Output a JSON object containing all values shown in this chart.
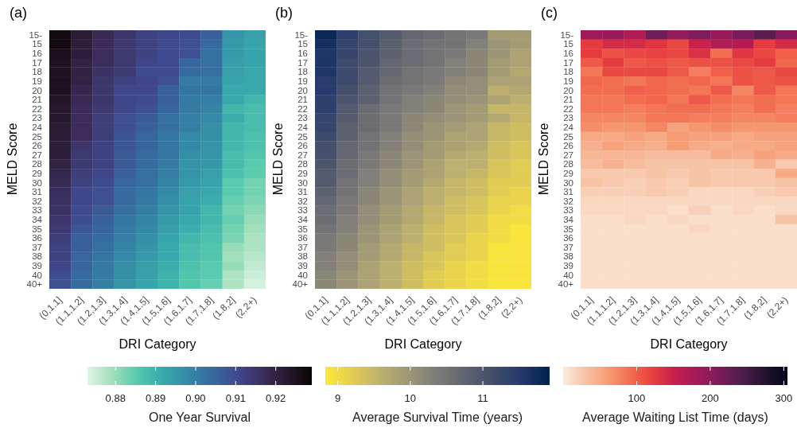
{
  "chart_data": [
    {
      "type": "heatmap",
      "title": "(a)",
      "xlabel": "DRI Category",
      "ylabel": "MELD Score",
      "clabel": "One Year Survival",
      "categories": [
        "(0,1.1]",
        "(1.1,1.2]",
        "(1.2,1.3]",
        "(1.3,1.4]",
        "(1.4,1.5]",
        "(1.5,1.6]",
        "(1.6,1.7]",
        "(1.7,1.8]",
        "(1.8,2]",
        "(2,2+)"
      ],
      "y_categories": [
        "15-",
        "15",
        "16",
        "17",
        "18",
        "19",
        "20",
        "21",
        "22",
        "23",
        "24",
        "25",
        "26",
        "27",
        "28",
        "29",
        "30",
        "31",
        "32",
        "33",
        "34",
        "35",
        "36",
        "37",
        "38",
        "39",
        "40",
        "40+"
      ],
      "cells": [
        [
          0.927,
          0.922,
          0.918,
          0.915,
          0.912,
          0.911,
          0.91,
          0.906,
          0.896,
          0.894
        ],
        [
          0.927,
          0.921,
          0.917,
          0.914,
          0.912,
          0.91,
          0.909,
          0.904,
          0.895,
          0.893
        ],
        [
          0.926,
          0.921,
          0.917,
          0.914,
          0.912,
          0.91,
          0.909,
          0.903,
          0.895,
          0.893
        ],
        [
          0.925,
          0.92,
          0.917,
          0.914,
          0.911,
          0.91,
          0.905,
          0.903,
          0.894,
          0.893
        ],
        [
          0.925,
          0.92,
          0.916,
          0.914,
          0.91,
          0.91,
          0.904,
          0.903,
          0.894,
          0.892
        ],
        [
          0.925,
          0.92,
          0.915,
          0.912,
          0.911,
          0.909,
          0.901,
          0.901,
          0.893,
          0.892
        ],
        [
          0.925,
          0.919,
          0.915,
          0.911,
          0.911,
          0.906,
          0.902,
          0.902,
          0.892,
          0.892
        ],
        [
          0.924,
          0.918,
          0.915,
          0.911,
          0.91,
          0.906,
          0.901,
          0.9,
          0.892,
          0.889
        ],
        [
          0.923,
          0.917,
          0.914,
          0.911,
          0.909,
          0.905,
          0.901,
          0.899,
          0.889,
          0.888
        ],
        [
          0.923,
          0.917,
          0.913,
          0.909,
          0.907,
          0.903,
          0.9,
          0.898,
          0.891,
          0.888
        ],
        [
          0.922,
          0.917,
          0.913,
          0.909,
          0.906,
          0.903,
          0.9,
          0.897,
          0.889,
          0.888
        ],
        [
          0.922,
          0.917,
          0.913,
          0.908,
          0.905,
          0.902,
          0.898,
          0.897,
          0.889,
          0.887
        ],
        [
          0.921,
          0.915,
          0.912,
          0.908,
          0.905,
          0.902,
          0.898,
          0.896,
          0.889,
          0.887
        ],
        [
          0.921,
          0.914,
          0.912,
          0.907,
          0.904,
          0.902,
          0.897,
          0.896,
          0.888,
          0.886
        ],
        [
          0.92,
          0.914,
          0.912,
          0.907,
          0.904,
          0.901,
          0.896,
          0.895,
          0.888,
          0.885
        ],
        [
          0.919,
          0.913,
          0.911,
          0.906,
          0.903,
          0.9,
          0.896,
          0.894,
          0.887,
          0.885
        ],
        [
          0.918,
          0.912,
          0.91,
          0.905,
          0.903,
          0.899,
          0.895,
          0.893,
          0.885,
          0.883
        ],
        [
          0.917,
          0.911,
          0.909,
          0.904,
          0.902,
          0.898,
          0.894,
          0.892,
          0.885,
          0.883
        ],
        [
          0.916,
          0.911,
          0.909,
          0.904,
          0.901,
          0.897,
          0.893,
          0.891,
          0.884,
          0.882
        ],
        [
          0.916,
          0.91,
          0.907,
          0.903,
          0.9,
          0.896,
          0.893,
          0.889,
          0.883,
          0.881
        ],
        [
          0.915,
          0.91,
          0.906,
          0.902,
          0.899,
          0.895,
          0.892,
          0.889,
          0.884,
          0.88
        ],
        [
          0.914,
          0.908,
          0.905,
          0.901,
          0.898,
          0.894,
          0.891,
          0.888,
          0.883,
          0.879
        ],
        [
          0.913,
          0.906,
          0.904,
          0.9,
          0.897,
          0.893,
          0.889,
          0.887,
          0.882,
          0.878
        ],
        [
          0.912,
          0.906,
          0.903,
          0.899,
          0.896,
          0.892,
          0.888,
          0.886,
          0.88,
          0.878
        ],
        [
          0.912,
          0.905,
          0.902,
          0.898,
          0.895,
          0.892,
          0.888,
          0.886,
          0.879,
          0.877
        ],
        [
          0.911,
          0.905,
          0.901,
          0.897,
          0.894,
          0.891,
          0.887,
          0.885,
          0.88,
          0.876
        ],
        [
          0.91,
          0.904,
          0.901,
          0.897,
          0.894,
          0.89,
          0.886,
          0.885,
          0.878,
          0.875
        ],
        [
          0.909,
          0.904,
          0.9,
          0.896,
          0.893,
          0.89,
          0.886,
          0.884,
          0.878,
          0.874
        ]
      ],
      "clim": [
        0.873,
        0.929
      ],
      "cticks": [
        0.88,
        0.89,
        {
          "value": 0.9,
          "label": "0.90"
        },
        0.91,
        0.92
      ]
    },
    {
      "type": "heatmap",
      "title": "(b)",
      "xlabel": "DRI Category",
      "ylabel": "MELD Score",
      "clabel": "Average Survival Time (years)",
      "categories": [
        "(0,1.1]",
        "(1.1,1.2]",
        "(1.2,1.3]",
        "(1.3,1.4]",
        "(1.4,1.5]",
        "(1.5,1.6]",
        "(1.6,1.7]",
        "(1.7,1.8]",
        "(1.8,2]",
        "(2,2+)"
      ],
      "y_categories": [
        "15-",
        "15",
        "16",
        "17",
        "18",
        "19",
        "20",
        "21",
        "22",
        "23",
        "24",
        "25",
        "26",
        "27",
        "28",
        "29",
        "30",
        "31",
        "32",
        "33",
        "34",
        "35",
        "36",
        "37",
        "38",
        "39",
        "40",
        "40+"
      ],
      "cells": [
        [
          11.8,
          11.4,
          11.1,
          10.9,
          10.7,
          10.6,
          10.5,
          10.4,
          9.9,
          9.9
        ],
        [
          11.7,
          11.3,
          11.1,
          10.8,
          10.6,
          10.5,
          10.5,
          10.3,
          10.0,
          9.9
        ],
        [
          11.6,
          11.3,
          11.0,
          10.8,
          10.6,
          10.5,
          10.4,
          10.2,
          10.0,
          9.8
        ],
        [
          11.6,
          11.2,
          11.0,
          10.7,
          10.6,
          10.5,
          10.3,
          10.2,
          9.9,
          9.8
        ],
        [
          11.6,
          11.2,
          10.9,
          10.7,
          10.5,
          10.4,
          10.3,
          10.2,
          9.9,
          9.7
        ],
        [
          11.5,
          11.2,
          10.9,
          10.6,
          10.5,
          10.4,
          10.2,
          10.1,
          9.8,
          9.8
        ],
        [
          11.5,
          11.1,
          10.8,
          10.5,
          10.4,
          10.3,
          10.1,
          10.1,
          9.6,
          9.7
        ],
        [
          11.4,
          11.0,
          10.8,
          10.5,
          10.3,
          10.2,
          10.1,
          10.0,
          9.8,
          9.6
        ],
        [
          11.4,
          10.9,
          10.6,
          10.4,
          10.3,
          10.2,
          10.0,
          9.9,
          9.5,
          9.5
        ],
        [
          11.3,
          10.9,
          10.6,
          10.4,
          10.2,
          10.1,
          10.0,
          9.9,
          9.7,
          9.5
        ],
        [
          11.3,
          10.8,
          10.6,
          10.4,
          10.2,
          10.0,
          9.9,
          9.8,
          9.5,
          9.4
        ],
        [
          11.2,
          10.8,
          10.5,
          10.3,
          10.1,
          10.0,
          9.8,
          9.8,
          9.5,
          9.4
        ],
        [
          11.1,
          10.7,
          10.5,
          10.3,
          10.1,
          9.9,
          9.8,
          9.7,
          9.4,
          9.3
        ],
        [
          11.1,
          10.7,
          10.4,
          10.2,
          10.0,
          9.9,
          9.7,
          9.6,
          9.4,
          9.3
        ],
        [
          11.0,
          10.6,
          10.4,
          10.2,
          10.0,
          9.8,
          9.6,
          9.6,
          9.3,
          9.2
        ],
        [
          10.9,
          10.6,
          10.3,
          10.1,
          9.9,
          9.8,
          9.6,
          9.5,
          9.3,
          9.2
        ],
        [
          10.9,
          10.5,
          10.3,
          10.1,
          9.9,
          9.7,
          9.5,
          9.4,
          9.2,
          9.2
        ],
        [
          10.8,
          10.5,
          10.2,
          10.0,
          9.8,
          9.6,
          9.5,
          9.4,
          9.2,
          9.1
        ],
        [
          10.7,
          10.4,
          10.2,
          10.0,
          9.8,
          9.6,
          9.4,
          9.3,
          9.1,
          9.1
        ],
        [
          10.6,
          10.4,
          10.1,
          9.9,
          9.7,
          9.5,
          9.4,
          9.3,
          9.1,
          9.0
        ],
        [
          10.6,
          10.3,
          10.1,
          9.9,
          9.7,
          9.5,
          9.3,
          9.2,
          9.0,
          9.0
        ],
        [
          10.5,
          10.3,
          10.0,
          9.8,
          9.6,
          9.4,
          9.3,
          9.2,
          9.0,
          8.9
        ],
        [
          10.4,
          10.2,
          10.0,
          9.8,
          9.6,
          9.4,
          9.3,
          9.1,
          9.0,
          8.9
        ],
        [
          10.4,
          10.2,
          9.9,
          9.7,
          9.5,
          9.4,
          9.2,
          9.1,
          8.9,
          8.9
        ],
        [
          10.3,
          10.1,
          9.9,
          9.7,
          9.5,
          9.3,
          9.2,
          9.1,
          8.9,
          8.9
        ],
        [
          10.3,
          10.1,
          9.8,
          9.6,
          9.4,
          9.3,
          9.1,
          9.0,
          8.9,
          8.9
        ],
        [
          10.2,
          10.0,
          9.8,
          9.6,
          9.4,
          9.2,
          9.1,
          9.0,
          8.9,
          8.9
        ],
        [
          10.2,
          10.0,
          9.8,
          9.6,
          9.4,
          9.2,
          9.1,
          9.0,
          8.9,
          8.9
        ]
      ],
      "clim": [
        8.83,
        11.92
      ],
      "cticks": [
        9,
        10,
        11
      ]
    },
    {
      "type": "heatmap",
      "title": "(c)",
      "xlabel": "DRI Category",
      "ylabel": "MELD Score",
      "clabel": "Average Waiting List Time (days)",
      "categories": [
        "(0,1.1]",
        "(1.1,1.2]",
        "(1.2,1.3]",
        "(1.3,1.4]",
        "(1.4,1.5]",
        "(1.5,1.6]",
        "(1.6,1.7]",
        "(1.7,1.8]",
        "(1.8,2]",
        "(2,2+)"
      ],
      "y_categories": [
        "15-",
        "15",
        "16",
        "17",
        "18",
        "19",
        "20",
        "21",
        "22",
        "23",
        "24",
        "25",
        "26",
        "27",
        "28",
        "29",
        "30",
        "31",
        "32",
        "33",
        "34",
        "35",
        "36",
        "37",
        "38",
        "39",
        "40",
        "40+"
      ],
      "cells": [
        [
          185,
          190,
          170,
          220,
          195,
          210,
          190,
          215,
          235,
          205
        ],
        [
          125,
          140,
          140,
          130,
          115,
          150,
          170,
          165,
          125,
          140
        ],
        [
          125,
          110,
          115,
          120,
          115,
          135,
          90,
          130,
          115,
          100
        ],
        [
          105,
          125,
          105,
          110,
          105,
          110,
          110,
          115,
          125,
          95
        ],
        [
          85,
          115,
          115,
          115,
          105,
          80,
          100,
          110,
          105,
          115
        ],
        [
          95,
          90,
          85,
          95,
          90,
          95,
          85,
          110,
          105,
          110
        ],
        [
          90,
          90,
          100,
          95,
          90,
          85,
          105,
          75,
          105,
          85
        ],
        [
          85,
          85,
          90,
          95,
          85,
          105,
          90,
          85,
          90,
          85
        ],
        [
          85,
          85,
          80,
          85,
          90,
          90,
          85,
          80,
          90,
          80
        ],
        [
          75,
          75,
          75,
          85,
          85,
          80,
          80,
          75,
          75,
          80
        ],
        [
          70,
          65,
          65,
          75,
          55,
          65,
          70,
          65,
          65,
          65
        ],
        [
          50,
          50,
          55,
          50,
          60,
          55,
          55,
          50,
          55,
          55
        ],
        [
          45,
          55,
          50,
          45,
          60,
          50,
          45,
          50,
          50,
          55
        ],
        [
          40,
          40,
          40,
          35,
          35,
          35,
          50,
          45,
          55,
          50
        ],
        [
          35,
          45,
          35,
          30,
          30,
          30,
          30,
          30,
          45,
          25
        ],
        [
          25,
          25,
          25,
          30,
          25,
          30,
          25,
          25,
          25,
          50
        ],
        [
          30,
          25,
          20,
          25,
          20,
          30,
          25,
          25,
          25,
          30
        ],
        [
          20,
          20,
          20,
          25,
          20,
          15,
          15,
          15,
          20,
          25
        ],
        [
          15,
          15,
          15,
          15,
          15,
          15,
          15,
          15,
          15,
          15
        ],
        [
          15,
          15,
          15,
          15,
          10,
          20,
          10,
          15,
          10,
          15
        ],
        [
          10,
          10,
          15,
          10,
          15,
          10,
          10,
          10,
          10,
          30
        ],
        [
          10,
          10,
          10,
          10,
          10,
          15,
          10,
          10,
          10,
          10
        ],
        [
          10,
          10,
          10,
          10,
          10,
          10,
          10,
          10,
          10,
          10
        ],
        [
          10,
          10,
          10,
          10,
          10,
          10,
          10,
          10,
          10,
          10
        ],
        [
          10,
          10,
          10,
          10,
          10,
          10,
          10,
          10,
          10,
          10
        ],
        [
          10,
          10,
          10,
          10,
          10,
          10,
          10,
          10,
          10,
          10
        ],
        [
          10,
          10,
          10,
          10,
          10,
          10,
          10,
          10,
          10,
          10
        ],
        [
          10,
          10,
          10,
          10,
          10,
          10,
          10,
          10,
          10,
          10
        ]
      ],
      "clim": [
        0,
        305
      ],
      "cticks": [
        100,
        200,
        300
      ]
    }
  ]
}
